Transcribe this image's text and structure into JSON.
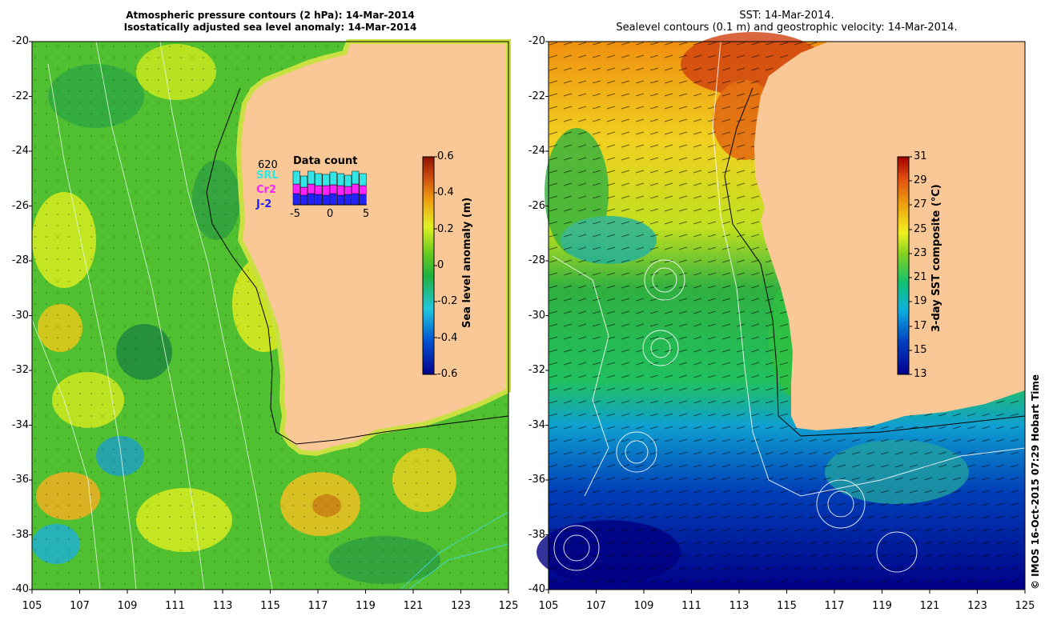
{
  "left_panel": {
    "title_line1": "Atmospheric pressure contours (2 hPa): 14-Mar-2014",
    "title_line2": "Isostatically adjusted sea level anomaly: 14-Mar-2014",
    "colorbar": {
      "label": "Sea level anomaly (m)",
      "ticks": [
        "0.6",
        "0.4",
        "0.2",
        "0",
        "-0.2",
        "-0.4",
        "-0.6"
      ]
    },
    "data_count": {
      "title": "Data count",
      "max": "620",
      "sat1": "SRL",
      "sat2": "Cr2",
      "sat3": "J-2",
      "xticks": [
        "-5",
        "0",
        "5"
      ],
      "colors": {
        "sat1": "#33e6e6",
        "sat2": "#ff22ff",
        "sat3": "#2222ff"
      }
    }
  },
  "right_panel": {
    "title_line1": "SST: 14-Mar-2014.",
    "title_line2": "Sealevel contours (0.1 m) and geostrophic velocity: 14-Mar-2014.",
    "colorbar": {
      "label": "3-day SST composite (°C)",
      "ticks": [
        "31",
        "29",
        "27",
        "25",
        "23",
        "21",
        "19",
        "17",
        "15",
        "13"
      ]
    }
  },
  "axes": {
    "lat_labels": [
      "-20",
      "-22",
      "-24",
      "-26",
      "-28",
      "-30",
      "-32",
      "-34",
      "-36",
      "-38",
      "-40"
    ],
    "lon_labels": [
      "105",
      "107",
      "109",
      "111",
      "113",
      "115",
      "117",
      "119",
      "121",
      "123",
      "125"
    ]
  },
  "credit": "© IMOS 16-Oct-2015 07:29 Hobart Time",
  "colors": {
    "land": "#fac896"
  }
}
